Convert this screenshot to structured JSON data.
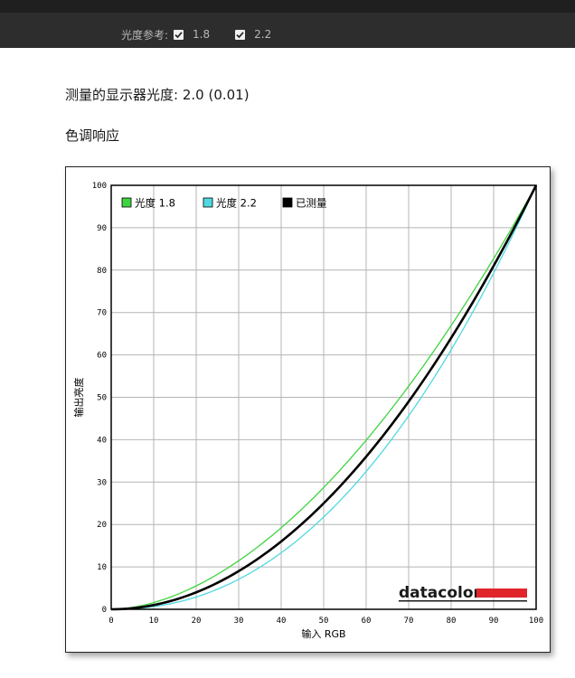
{
  "toolbar": {
    "reference_label": "光度参考:",
    "options": [
      {
        "label": "1.8",
        "checked": true
      },
      {
        "label": "2.2",
        "checked": true
      }
    ]
  },
  "measured": {
    "label": "测量的显示器光度:",
    "value": "2.0 (0.01)"
  },
  "section": {
    "title": "色调响应"
  },
  "brand": {
    "name": "datacolor",
    "bar_color": "#e0262b"
  },
  "chart_data": {
    "type": "line",
    "xlabel": "输入 RGB",
    "ylabel": "输出亮度",
    "xlim": [
      0,
      100
    ],
    "ylim": [
      0,
      100
    ],
    "x_ticks": [
      0,
      10,
      20,
      30,
      40,
      50,
      60,
      70,
      80,
      90,
      100
    ],
    "y_ticks": [
      0,
      10,
      20,
      30,
      40,
      50,
      60,
      70,
      80,
      90,
      100
    ],
    "grid": true,
    "legend_position": "top-left",
    "series": [
      {
        "name": "光度 1.8",
        "color": "#3fd43f",
        "gamma": 1.8,
        "x": [
          0,
          10,
          20,
          30,
          40,
          50,
          60,
          70,
          80,
          90,
          100
        ],
        "y": [
          0,
          1.6,
          5.5,
          11.5,
          19.2,
          28.7,
          39.8,
          52.6,
          66.9,
          82.7,
          100
        ]
      },
      {
        "name": "光度 2.2",
        "color": "#4fd9e0",
        "gamma": 2.2,
        "x": [
          0,
          10,
          20,
          30,
          40,
          50,
          60,
          70,
          80,
          90,
          100
        ],
        "y": [
          0,
          0.6,
          2.9,
          7.1,
          13.3,
          21.8,
          32.5,
          45.6,
          61.2,
          79.3,
          100
        ]
      },
      {
        "name": "已测量",
        "color": "#000000",
        "gamma": 2.0,
        "x": [
          0,
          10,
          20,
          30,
          40,
          50,
          60,
          70,
          80,
          90,
          100
        ],
        "y": [
          0,
          1.0,
          4.0,
          9.0,
          16.0,
          25.0,
          36.0,
          49.0,
          64.0,
          81.0,
          100
        ]
      }
    ]
  }
}
